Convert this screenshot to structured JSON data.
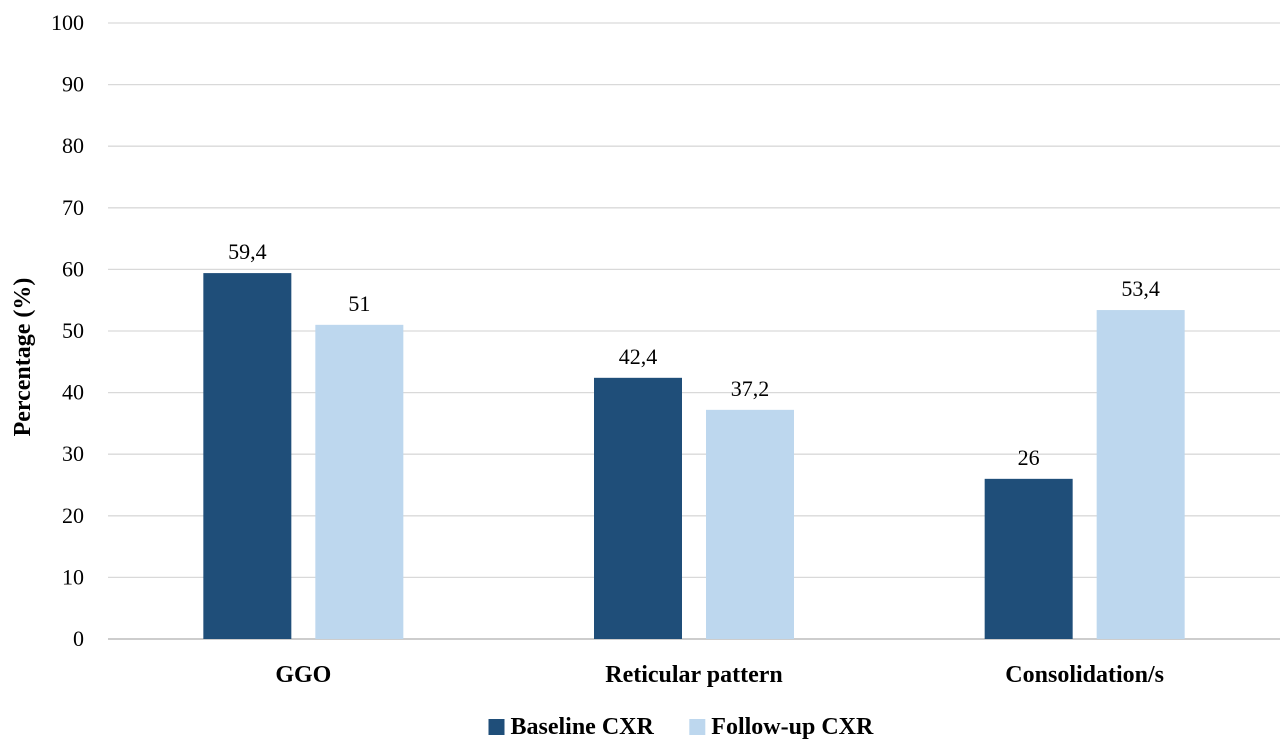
{
  "chart_data": {
    "type": "bar",
    "categories": [
      "GGO",
      "Reticular pattern",
      "Consolidation/s"
    ],
    "series": [
      {
        "name": "Baseline CXR",
        "color": "#1f4e79",
        "values": [
          59.4,
          42.4,
          26
        ],
        "labels": [
          "59,4",
          "42,4",
          "26"
        ]
      },
      {
        "name": "Follow-up CXR",
        "color": "#bdd7ee",
        "values": [
          51,
          37.2,
          53.4
        ],
        "labels": [
          "51",
          "37,2",
          "53,4"
        ]
      }
    ],
    "yticks": [
      "0",
      "10",
      "20",
      "30",
      "40",
      "50",
      "60",
      "70",
      "80",
      "90",
      "100"
    ],
    "ylim": [
      0,
      100
    ],
    "xlabel": "",
    "ylabel": "Percentage (%)",
    "title": "",
    "grid": true,
    "gridColor": "#d9d9d9",
    "legend_position": "bottom"
  }
}
